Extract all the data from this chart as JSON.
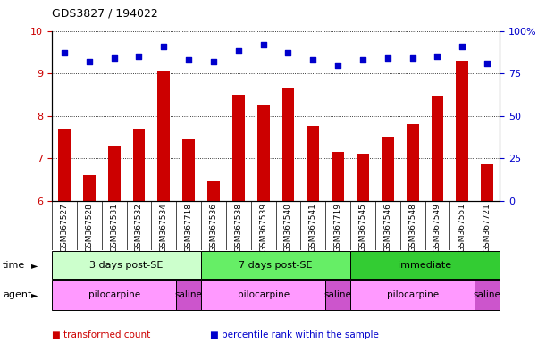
{
  "title": "GDS3827 / 194022",
  "samples": [
    "GSM367527",
    "GSM367528",
    "GSM367531",
    "GSM367532",
    "GSM367534",
    "GSM367718",
    "GSM367536",
    "GSM367538",
    "GSM367539",
    "GSM367540",
    "GSM367541",
    "GSM367719",
    "GSM367545",
    "GSM367546",
    "GSM367548",
    "GSM367549",
    "GSM367551",
    "GSM367721"
  ],
  "transformed_count": [
    7.7,
    6.6,
    7.3,
    7.7,
    9.05,
    7.45,
    6.45,
    8.5,
    8.25,
    8.65,
    7.75,
    7.15,
    7.1,
    7.5,
    7.8,
    8.45,
    9.3,
    6.85
  ],
  "percentile_rank": [
    87,
    82,
    84,
    85,
    91,
    83,
    82,
    88,
    92,
    87,
    83,
    80,
    83,
    84,
    84,
    85,
    91,
    81
  ],
  "bar_color": "#cc0000",
  "dot_color": "#0000cc",
  "ylim_left": [
    6,
    10
  ],
  "ylim_right": [
    0,
    100
  ],
  "yticks_left": [
    6,
    7,
    8,
    9,
    10
  ],
  "yticks_right": [
    0,
    25,
    50,
    75,
    100
  ],
  "yticklabels_right": [
    "0",
    "25",
    "50",
    "75",
    "100%"
  ],
  "time_groups": [
    {
      "label": "3 days post-SE",
      "start": 0,
      "end": 6,
      "color": "#ccffcc"
    },
    {
      "label": "7 days post-SE",
      "start": 6,
      "end": 12,
      "color": "#66ee66"
    },
    {
      "label": "immediate",
      "start": 12,
      "end": 18,
      "color": "#33cc33"
    }
  ],
  "agent_groups": [
    {
      "label": "pilocarpine",
      "start": 0,
      "end": 5,
      "color": "#ff99ff"
    },
    {
      "label": "saline",
      "start": 5,
      "end": 6,
      "color": "#cc55cc"
    },
    {
      "label": "pilocarpine",
      "start": 6,
      "end": 11,
      "color": "#ff99ff"
    },
    {
      "label": "saline",
      "start": 11,
      "end": 12,
      "color": "#cc55cc"
    },
    {
      "label": "pilocarpine",
      "start": 12,
      "end": 17,
      "color": "#ff99ff"
    },
    {
      "label": "saline",
      "start": 17,
      "end": 18,
      "color": "#cc55cc"
    }
  ],
  "legend_items": [
    {
      "label": "transformed count",
      "color": "#cc0000"
    },
    {
      "label": "percentile rank within the sample",
      "color": "#0000cc"
    }
  ],
  "bg_color": "#ffffff",
  "grid_color": "#000000",
  "tick_label_fontsize": 6.5,
  "bar_width": 0.5,
  "xlabel_bg": "#dddddd"
}
